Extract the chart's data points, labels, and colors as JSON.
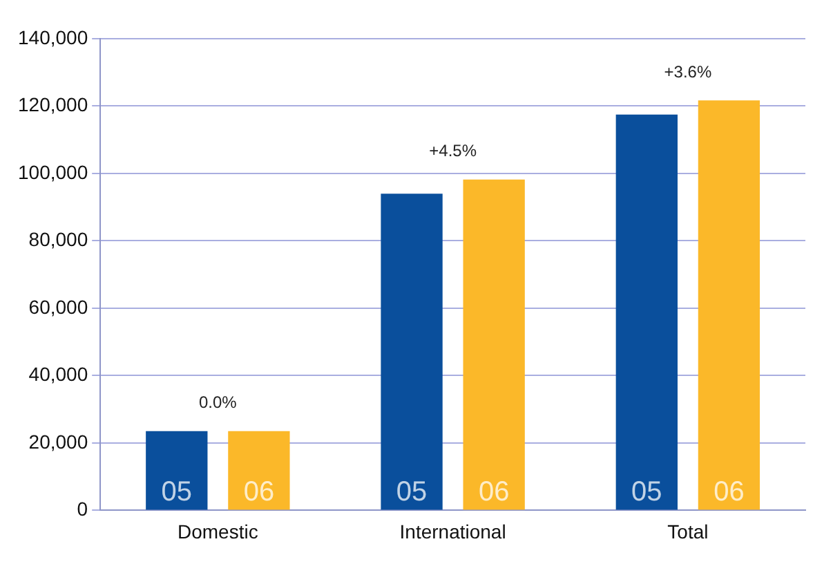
{
  "chart_data": {
    "type": "bar",
    "categories": [
      "Domestic",
      "International",
      "Total"
    ],
    "series": [
      {
        "name": "05",
        "color": "#0a4f9c",
        "values": [
          23500,
          94000,
          117500
        ]
      },
      {
        "name": "06",
        "color": "#fbb829",
        "values": [
          23500,
          98200,
          121700
        ]
      }
    ],
    "ylim": [
      0,
      140000
    ],
    "yticks": [
      0,
      {
        "value": 20000,
        "label": "20,000"
      },
      {
        "value": 40000,
        "label": "40,000"
      },
      {
        "value": 60000,
        "label": "60,000"
      },
      {
        "value": 80000,
        "label": "80,000"
      },
      {
        "value": 100000,
        "label": "100,000"
      },
      {
        "value": 120000,
        "label": "120,000"
      },
      {
        "value": 140000,
        "label": "140,000"
      }
    ],
    "grid": "y",
    "legend": false,
    "annotations": [
      "0.0%",
      "+4.5%",
      "+3.6%"
    ]
  }
}
